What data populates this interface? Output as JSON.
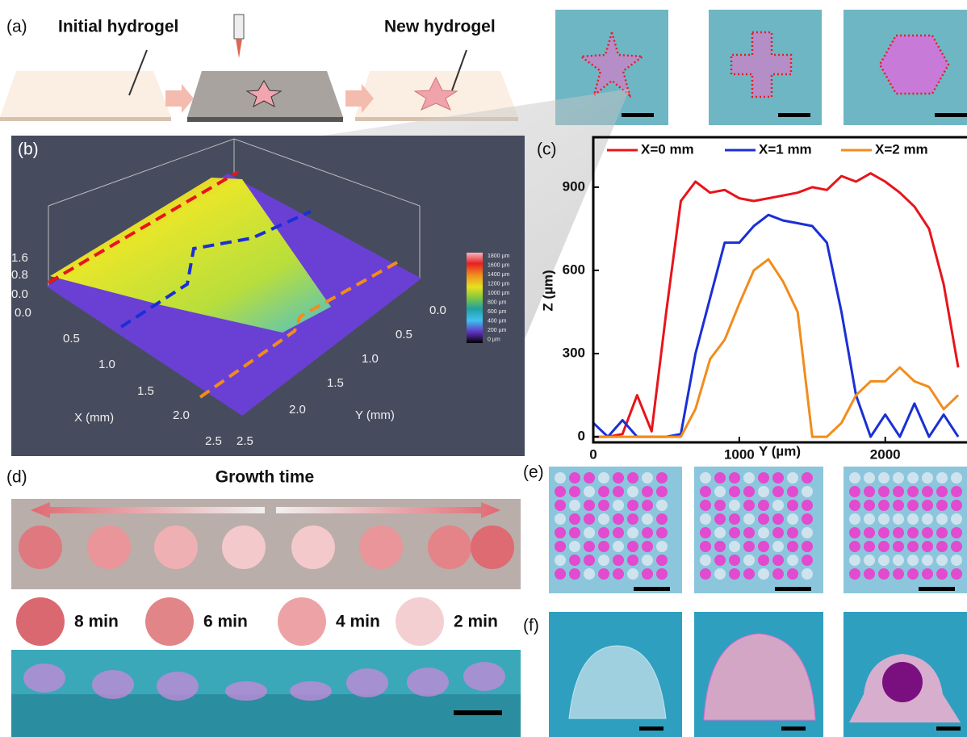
{
  "figure": {
    "panel_labels": [
      "(a)",
      "(b)",
      "(c)",
      "(d)",
      "(e)",
      "(f)"
    ],
    "a": {
      "initial": "Initial hydrogel",
      "new": "New hydrogel"
    },
    "b": {
      "x_label": "X (mm)",
      "y_label": "Y (mm)",
      "z_ticks": [
        "1.6",
        "0.8",
        "0.0"
      ],
      "x_ticks": [
        "0.0",
        "0.5",
        "1.0",
        "1.5",
        "2.0",
        "2.5"
      ],
      "y_ticks": [
        "0.0",
        "0.5",
        "1.0",
        "1.5",
        "2.0",
        "2.5"
      ],
      "colorbar": [
        "1800 µm",
        "1600 µm",
        "1400 µm",
        "1200 µm",
        "1000 µm",
        "800 µm",
        "600 µm",
        "400 µm",
        "200 µm",
        "0 µm"
      ]
    },
    "d": {
      "title": "Growth time",
      "legend": [
        "8 min",
        "6 min",
        "4 min",
        "2 min"
      ]
    }
  },
  "chart_data": {
    "type": "line",
    "x_label": "Y (µm)",
    "y_label": "Z (µm)",
    "x": [
      0,
      100,
      200,
      300,
      400,
      500,
      600,
      700,
      800,
      900,
      1000,
      1100,
      1200,
      1300,
      1400,
      1500,
      1600,
      1700,
      1800,
      1900,
      2000,
      2100,
      2200,
      2300,
      2400,
      2500
    ],
    "series": [
      {
        "name": "X=0 mm",
        "color": "#e8141b",
        "values": [
          0,
          0,
          10,
          150,
          20,
          450,
          850,
          920,
          880,
          890,
          860,
          850,
          860,
          870,
          880,
          900,
          890,
          940,
          920,
          950,
          920,
          880,
          830,
          750,
          550,
          250
        ]
      },
      {
        "name": "X=1 mm",
        "color": "#1a2fd6",
        "values": [
          50,
          0,
          60,
          0,
          0,
          0,
          10,
          300,
          500,
          700,
          700,
          760,
          800,
          780,
          770,
          760,
          700,
          450,
          150,
          0,
          80,
          0,
          120,
          0,
          80,
          0
        ]
      },
      {
        "name": "X=2 mm",
        "color": "#f28c1c",
        "values": [
          0,
          0,
          0,
          0,
          0,
          0,
          0,
          100,
          280,
          350,
          480,
          600,
          640,
          560,
          450,
          0,
          0,
          50,
          150,
          200,
          200,
          250,
          200,
          180,
          100,
          150
        ]
      }
    ],
    "xlim": [
      0,
      2560
    ],
    "ylim": [
      -20,
      1080
    ],
    "xticks": [
      0,
      1000,
      2000
    ],
    "yticks": [
      0,
      300,
      600,
      900
    ]
  }
}
